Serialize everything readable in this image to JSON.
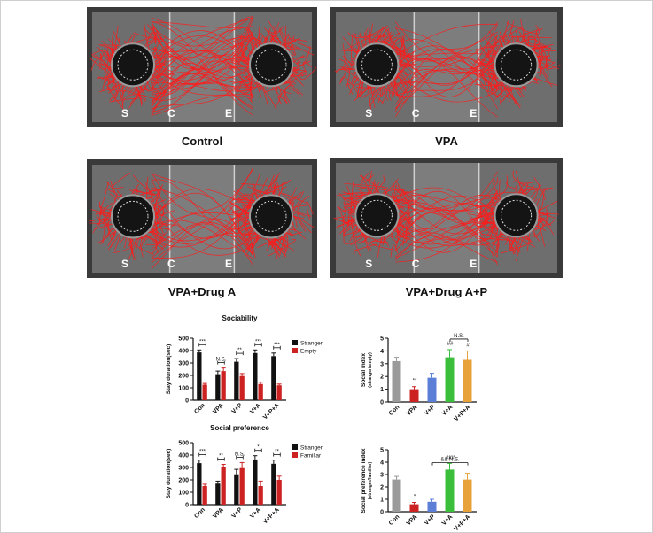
{
  "conditions": [
    {
      "name": "Control",
      "zones": [
        "S",
        "C",
        "E"
      ]
    },
    {
      "name": "VPA",
      "zones": [
        "S",
        "C",
        "E"
      ]
    },
    {
      "name": "VPA+Drug A",
      "zones": [
        "S",
        "C",
        "E"
      ]
    },
    {
      "name": "VPA+Drug A+P",
      "zones": [
        "S",
        "C",
        "E"
      ]
    }
  ],
  "colors": {
    "stranger": "#111111",
    "empty": "#cc2222",
    "track": "#ff1a1a",
    "con": "#9a9a9a",
    "vpa": "#cc2222",
    "vp": "#5b7fd6",
    "va": "#3bbf3b",
    "vpa_drug_ap": "#e8a23a"
  },
  "chart_data": [
    {
      "type": "bar",
      "title": "Sociability",
      "ylabel": "Stay duration(sec)",
      "categories": [
        "Con",
        "VPA",
        "V+P",
        "V+A",
        "V+P+A"
      ],
      "ylim": [
        0,
        500
      ],
      "yticks": [
        0,
        100,
        200,
        300,
        400,
        500
      ],
      "legend": "top-right",
      "series": [
        {
          "name": "Stranger",
          "color": "#111111",
          "values": [
            385,
            210,
            310,
            380,
            355
          ],
          "errors": [
            20,
            25,
            25,
            25,
            25
          ]
        },
        {
          "name": "Empty",
          "color": "#cc2222",
          "values": [
            125,
            235,
            195,
            130,
            120
          ],
          "errors": [
            10,
            25,
            20,
            15,
            10
          ]
        }
      ],
      "annotations": [
        "***",
        "N.S.",
        "**",
        "***",
        "***"
      ]
    },
    {
      "type": "bar",
      "title": "",
      "ylabel": "Social index",
      "ylabel2": "(stranger/empty)",
      "categories": [
        "Con",
        "VPA",
        "V+P",
        "V+A",
        "V+P+A"
      ],
      "ylim": [
        0,
        5
      ],
      "yticks": [
        0,
        1,
        2,
        3,
        4,
        5
      ],
      "series": [
        {
          "name": "",
          "colors": [
            "#9a9a9a",
            "#cc2222",
            "#5b7fd6",
            "#3bbf3b",
            "#e8a23a"
          ],
          "values": [
            3.2,
            1.0,
            1.9,
            3.5,
            3.3
          ],
          "errors": [
            0.3,
            0.2,
            0.35,
            0.6,
            0.7
          ]
        }
      ],
      "annotations": [
        "",
        "**",
        "",
        "##",
        "#"
      ],
      "bracket": {
        "from": 3,
        "to": 4,
        "label": "N.S."
      }
    },
    {
      "type": "bar",
      "title": "Social preference",
      "ylabel": "Stay duration(sec)",
      "categories": [
        "Con",
        "VPA",
        "V+P",
        "V+A",
        "V+P+A"
      ],
      "ylim": [
        0,
        500
      ],
      "yticks": [
        0,
        100,
        200,
        300,
        400,
        500
      ],
      "legend": "top-right",
      "series": [
        {
          "name": "Stranger",
          "color": "#111111",
          "values": [
            335,
            170,
            245,
            365,
            330
          ],
          "errors": [
            25,
            20,
            40,
            30,
            30
          ]
        },
        {
          "name": "Familiar",
          "color": "#cc2222",
          "values": [
            150,
            305,
            295,
            150,
            200
          ],
          "errors": [
            15,
            20,
            45,
            40,
            30
          ]
        }
      ],
      "annotations": [
        "***",
        "**",
        "N.S.",
        "*",
        "**"
      ]
    },
    {
      "type": "bar",
      "title": "",
      "ylabel": "Social preference index",
      "ylabel2": "(stranger/familiar)",
      "categories": [
        "Con",
        "VPA",
        "V+P",
        "V+A",
        "V+P+A"
      ],
      "ylim": [
        0,
        5
      ],
      "yticks": [
        0,
        1,
        2,
        3,
        4,
        5
      ],
      "series": [
        {
          "name": "",
          "colors": [
            "#9a9a9a",
            "#cc2222",
            "#5b7fd6",
            "#3bbf3b",
            "#e8a23a"
          ],
          "values": [
            2.6,
            0.6,
            0.8,
            3.4,
            2.6
          ],
          "errors": [
            0.25,
            0.15,
            0.2,
            0.5,
            0.5
          ]
        }
      ],
      "annotations": [
        "",
        "*",
        "",
        "###",
        ""
      ],
      "bracket": {
        "from": 2,
        "to": 4,
        "label": "&&  N.S."
      }
    }
  ]
}
